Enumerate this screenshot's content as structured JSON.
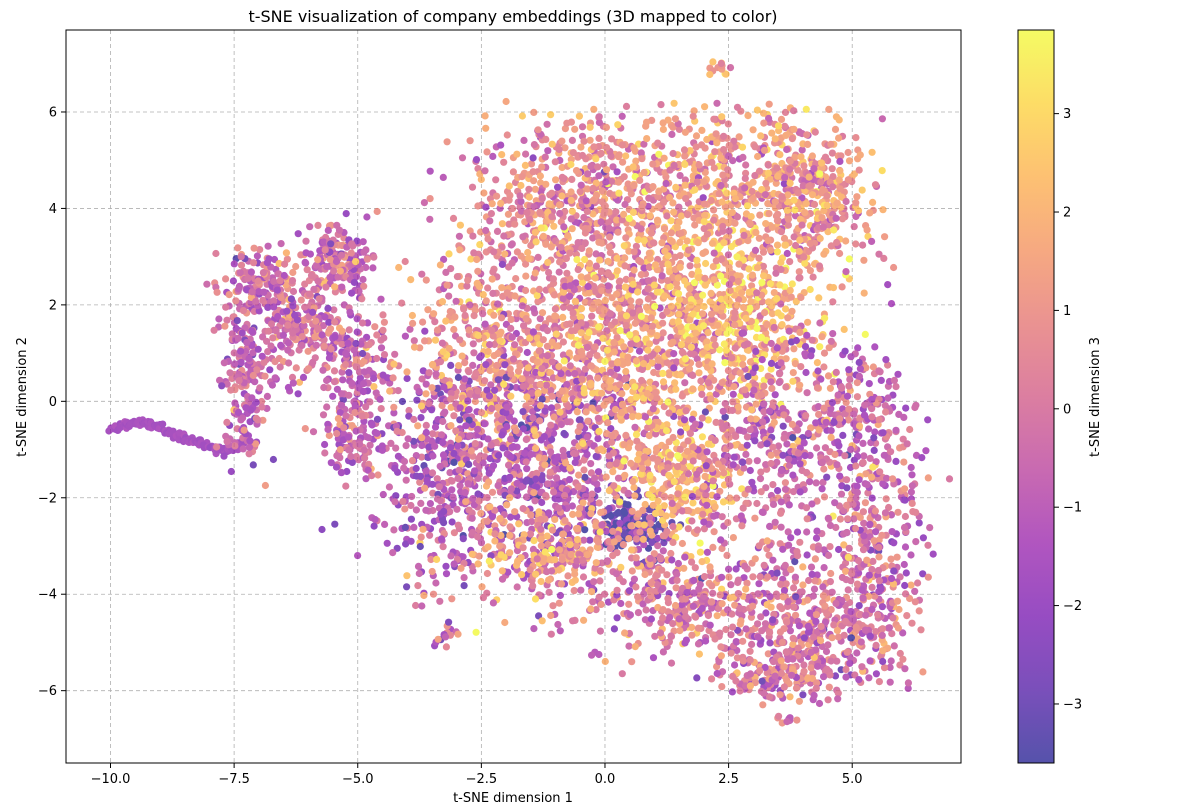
{
  "chart_data": {
    "type": "scatter",
    "title": "t-SNE visualization of company embeddings (3D mapped to color)",
    "xlabel": "t-SNE dimension 1",
    "ylabel": "t-SNE dimension 2",
    "xlim": [
      -10.9,
      7.2
    ],
    "ylim": [
      -7.5,
      7.7
    ],
    "xticks": [
      -10.0,
      -7.5,
      -5.0,
      -2.5,
      0.0,
      2.5,
      5.0
    ],
    "xtick_labels": [
      "−10.0",
      "−7.5",
      "−5.0",
      "−2.5",
      "0.0",
      "2.5",
      "5.0"
    ],
    "yticks": [
      -6,
      -4,
      -2,
      0,
      2,
      4,
      6
    ],
    "ytick_labels": [
      "−6",
      "−4",
      "−2",
      "0",
      "2",
      "4",
      "6"
    ],
    "grid": true,
    "grid_style": "dashed",
    "point_alpha": 0.7,
    "colormap": "plasma",
    "colorbar": {
      "label": "t-SNE dimension 3",
      "range": [
        -3.6,
        3.85
      ],
      "ticks": [
        -3,
        -2,
        -1,
        0,
        1,
        2,
        3
      ],
      "tick_labels": [
        "−3",
        "−2",
        "−1",
        "0",
        "1",
        "2",
        "3"
      ]
    },
    "clusters": [
      {
        "shape": "curve",
        "points": [
          [
            -10.0,
            -0.6
          ],
          [
            -9.7,
            -0.5
          ],
          [
            -9.4,
            -0.45
          ],
          [
            -9.1,
            -0.5
          ],
          [
            -8.8,
            -0.62
          ],
          [
            -8.5,
            -0.75
          ],
          [
            -8.2,
            -0.88
          ],
          [
            -7.9,
            -0.98
          ],
          [
            -7.6,
            -1.02
          ],
          [
            -7.4,
            -0.9
          ],
          [
            -7.25,
            -0.7
          ]
        ],
        "color_value": -1.6,
        "count": 150
      },
      {
        "shape": "blob",
        "center": [
          -7.3,
          0.6
        ],
        "spread": [
          0.25,
          0.9
        ],
        "color_value": -0.6,
        "count": 200
      },
      {
        "shape": "blob",
        "center": [
          -6.9,
          2.4
        ],
        "spread": [
          0.4,
          0.35
        ],
        "color_value": -0.4,
        "count": 120
      },
      {
        "shape": "blob",
        "center": [
          -6.1,
          1.6
        ],
        "spread": [
          0.45,
          0.6
        ],
        "color_value": -0.2,
        "count": 220
      },
      {
        "shape": "blob",
        "center": [
          -5.4,
          2.9
        ],
        "spread": [
          0.35,
          0.35
        ],
        "color_value": -0.3,
        "count": 140
      },
      {
        "shape": "blob",
        "center": [
          -5.1,
          0.6
        ],
        "spread": [
          0.35,
          0.9
        ],
        "color_value": -0.5,
        "count": 180
      },
      {
        "shape": "blob",
        "center": [
          -5.0,
          -0.9
        ],
        "spread": [
          0.3,
          0.4
        ],
        "color_value": -0.6,
        "count": 80
      },
      {
        "shape": "blob",
        "center": [
          -3.3,
          -1.5
        ],
        "spread": [
          0.7,
          1.2
        ],
        "color_value": -1.0,
        "count": 350
      },
      {
        "shape": "blob",
        "center": [
          -2.0,
          1.0
        ],
        "spread": [
          1.0,
          1.3
        ],
        "color_value": 0.8,
        "count": 650
      },
      {
        "shape": "blob",
        "center": [
          -1.2,
          -1.4
        ],
        "spread": [
          1.0,
          1.2
        ],
        "color_value": -1.2,
        "count": 600
      },
      {
        "shape": "blob",
        "center": [
          -0.6,
          4.2
        ],
        "spread": [
          1.0,
          0.8
        ],
        "color_value": 0.6,
        "count": 500
      },
      {
        "shape": "blob",
        "center": [
          0.5,
          1.3
        ],
        "spread": [
          1.1,
          1.3
        ],
        "color_value": 1.0,
        "count": 800
      },
      {
        "shape": "blob",
        "center": [
          0.6,
          -2.6
        ],
        "spread": [
          0.35,
          0.3
        ],
        "color_value": -3.2,
        "count": 140
      },
      {
        "shape": "blob",
        "center": [
          -1.0,
          -3.1
        ],
        "spread": [
          1.0,
          0.6
        ],
        "color_value": 1.2,
        "count": 280
      },
      {
        "shape": "blob",
        "center": [
          1.5,
          -1.6
        ],
        "spread": [
          0.7,
          0.8
        ],
        "color_value": 1.8,
        "count": 320
      },
      {
        "shape": "blob",
        "center": [
          2.6,
          1.8
        ],
        "spread": [
          1.0,
          1.0
        ],
        "color_value": 2.0,
        "count": 550
      },
      {
        "shape": "blob",
        "center": [
          2.4,
          4.6
        ],
        "spread": [
          1.0,
          0.8
        ],
        "color_value": 1.2,
        "count": 450
      },
      {
        "shape": "blob",
        "center": [
          4.2,
          4.2
        ],
        "spread": [
          0.6,
          0.8
        ],
        "color_value": 1.0,
        "count": 320
      },
      {
        "shape": "blob",
        "center": [
          3.4,
          -0.8
        ],
        "spread": [
          0.9,
          1.1
        ],
        "color_value": -0.4,
        "count": 400
      },
      {
        "shape": "blob",
        "center": [
          1.6,
          -4.2
        ],
        "spread": [
          1.0,
          0.6
        ],
        "color_value": 0.0,
        "count": 320
      },
      {
        "shape": "blob",
        "center": [
          4.2,
          -4.6
        ],
        "spread": [
          0.8,
          0.8
        ],
        "color_value": 0.0,
        "count": 380
      },
      {
        "shape": "blob",
        "center": [
          5.4,
          -3.3
        ],
        "spread": [
          0.5,
          1.4
        ],
        "color_value": -0.2,
        "count": 320
      },
      {
        "shape": "blob",
        "center": [
          3.4,
          -5.7
        ],
        "spread": [
          0.5,
          0.3
        ],
        "color_value": 0.1,
        "count": 120
      },
      {
        "shape": "blob",
        "center": [
          5.3,
          -0.5
        ],
        "spread": [
          0.5,
          0.9
        ],
        "color_value": -0.5,
        "count": 160
      },
      {
        "shape": "blob",
        "center": [
          2.3,
          6.9
        ],
        "spread": [
          0.15,
          0.08
        ],
        "color_value": 0.6,
        "count": 12
      },
      {
        "shape": "blob",
        "center": [
          3.7,
          -6.6
        ],
        "spread": [
          0.1,
          0.08
        ],
        "color_value": 0.0,
        "count": 8
      },
      {
        "shape": "blob",
        "center": [
          -3.2,
          -4.8
        ],
        "spread": [
          0.15,
          0.15
        ],
        "color_value": 0.0,
        "count": 12
      }
    ]
  }
}
